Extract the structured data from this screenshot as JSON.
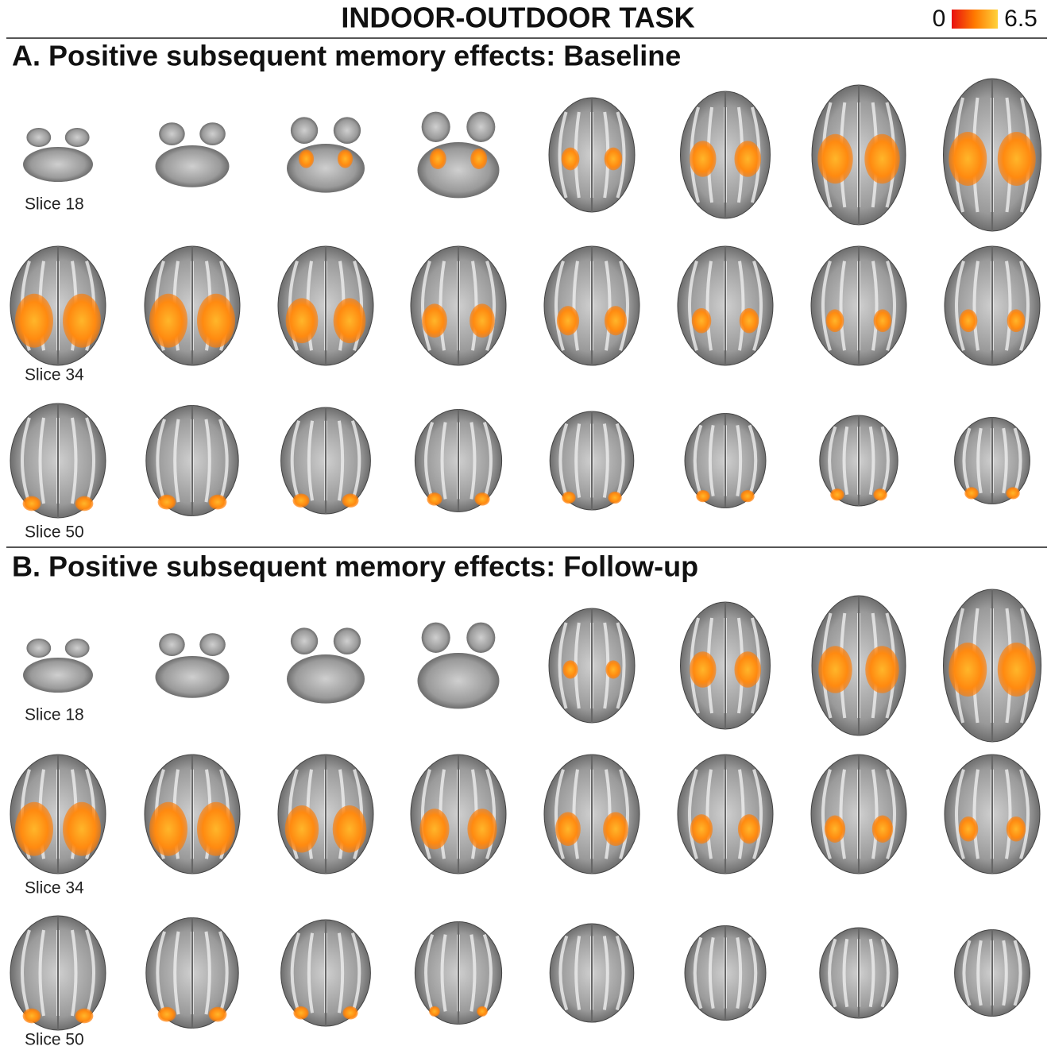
{
  "title": "INDOOR-OUTDOOR TASK",
  "colorbar": {
    "min": 0,
    "max": 6.5
  },
  "panels": [
    {
      "title": "A. Positive subsequent memory effects: Baseline",
      "rows": [
        {
          "label": "Slice 18"
        },
        {
          "label": "Slice 34"
        },
        {
          "label": "Slice 50"
        }
      ]
    },
    {
      "title": "B. Positive subsequent memory effects: Follow-up",
      "rows": [
        {
          "label": "Slice 18"
        },
        {
          "label": "Slice 34"
        },
        {
          "label": "Slice 50"
        }
      ]
    }
  ]
}
